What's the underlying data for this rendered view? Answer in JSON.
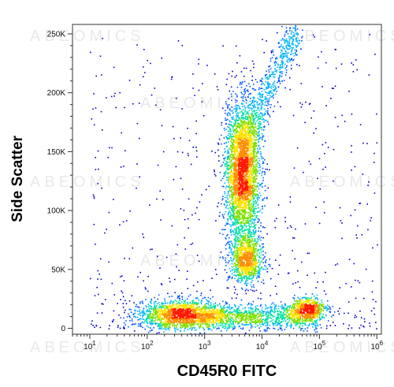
{
  "chart_data": {
    "type": "scatter",
    "subtype": "flow-cytometry-density-dot-plot",
    "xlabel": "CD45R0 FITC",
    "ylabel": "Side Scatter",
    "x_scale": "log",
    "xlim": [
      5,
      1200000
    ],
    "ylim": [
      -5000,
      258000
    ],
    "x_ticks": [
      {
        "value": 10,
        "base": "10",
        "exp": "1"
      },
      {
        "value": 100,
        "base": "10",
        "exp": "2"
      },
      {
        "value": 1000,
        "base": "10",
        "exp": "3"
      },
      {
        "value": 10000,
        "base": "10",
        "exp": "4"
      },
      {
        "value": 100000,
        "base": "10",
        "exp": "5"
      },
      {
        "value": 1000000,
        "base": "10",
        "exp": "6"
      }
    ],
    "y_ticks": [
      {
        "value": 0,
        "label": "0"
      },
      {
        "value": 50000,
        "label": "50K"
      },
      {
        "value": 100000,
        "label": "100K"
      },
      {
        "value": 150000,
        "label": "150K"
      },
      {
        "value": 200000,
        "label": "200K"
      },
      {
        "value": 250000,
        "label": "250K"
      }
    ],
    "populations": [
      {
        "name": "CD45R0-negative lymphocytes",
        "x_center": 400,
        "y_center": 12000,
        "x_spread_decades": 0.38,
        "y_spread": 6000,
        "weight": 0.2
      },
      {
        "name": "CD45R0-positive lymphocytes",
        "x_center": 60000,
        "y_center": 17000,
        "x_spread_decades": 0.17,
        "y_spread": 4500,
        "weight": 0.07
      },
      {
        "name": "granulocytes",
        "x_center": 4500,
        "y_center": 132000,
        "x_spread_decades": 0.15,
        "y_spread": 30000,
        "weight": 0.36
      },
      {
        "name": "monocytes",
        "x_center": 5200,
        "y_center": 58000,
        "x_spread_decades": 0.14,
        "y_spread": 10000,
        "weight": 0.1
      },
      {
        "name": "connecting band",
        "x_from": 1000,
        "x_to": 100000,
        "y_center": 10000,
        "y_spread": 5000,
        "weight": 0.12
      },
      {
        "name": "high side-scatter stream",
        "x_from": 4000,
        "x_to": 40000,
        "y_from": 150000,
        "y_to": 255000,
        "weight": 0.08
      },
      {
        "name": "background debris",
        "x_from": 10,
        "x_to": 1000000,
        "y_from": 0,
        "y_to": 250000,
        "weight": 0.07
      }
    ],
    "colormap": [
      "#0000cc",
      "#0055ff",
      "#00b4ff",
      "#00e0a0",
      "#7fe000",
      "#ffe000",
      "#ff8c00",
      "#ff1a00"
    ],
    "grid": false,
    "legend": "none"
  },
  "watermark": {
    "text": "ABEOMICS",
    "color": "#e9e9e9"
  }
}
